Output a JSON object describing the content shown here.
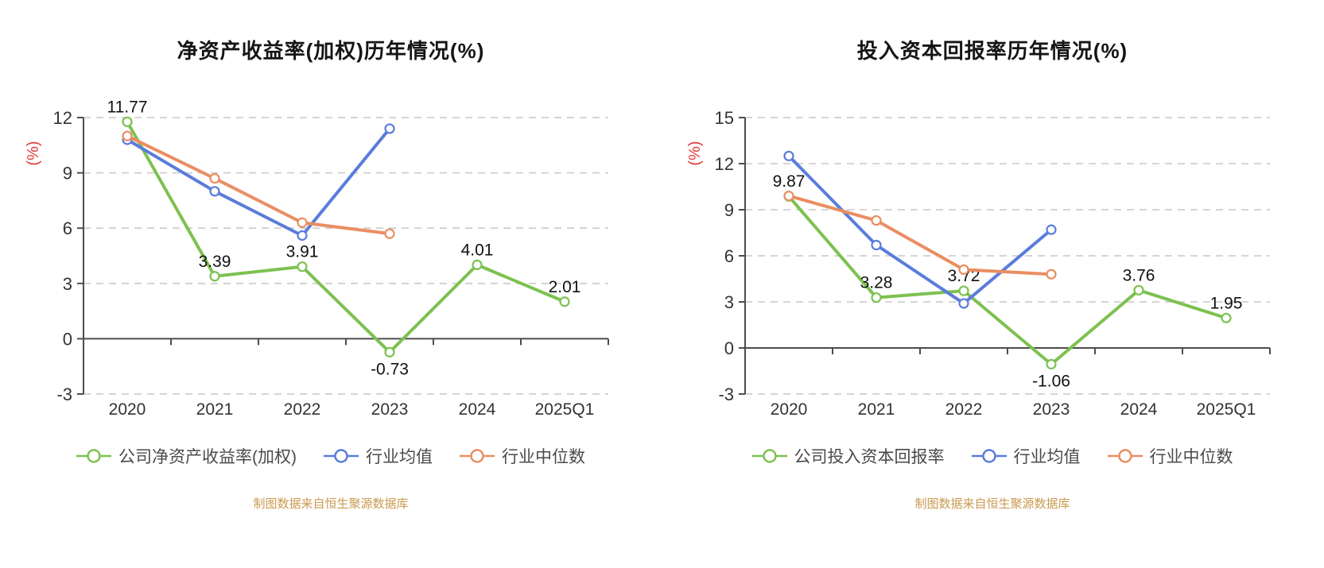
{
  "style_colors": {
    "company_series": "#7dc150",
    "industry_avg_series": "#5b7cdb",
    "industry_median_series": "#ea8e62",
    "unit_label": "#e23b3b",
    "footer_text": "#c99a4f",
    "axis_line": "#4d4d4d",
    "tick_label": "#333333",
    "gridline": "#cfcfcf",
    "data_label": "#111111"
  },
  "chart_data": [
    {
      "type": "line",
      "title": "净资产收益率(加权)历年情况(%)",
      "ylabel": "(%)",
      "categories": [
        "2020",
        "2021",
        "2022",
        "2023",
        "2024",
        "2025Q1"
      ],
      "y_ticks": [
        12,
        9,
        6,
        3,
        0,
        -3
      ],
      "ylim": [
        -3,
        12
      ],
      "grid": "horizontal-dashed",
      "legend_position": "bottom",
      "series": [
        {
          "name": "公司净资产收益率(加权)",
          "color": "#7dc150",
          "show_labels": true,
          "values": [
            11.77,
            3.39,
            3.91,
            -0.73,
            4.01,
            2.01
          ]
        },
        {
          "name": "行业均值",
          "color": "#5b7cdb",
          "show_labels": false,
          "values": [
            10.8,
            8.0,
            5.6,
            11.4,
            null,
            null
          ]
        },
        {
          "name": "行业中位数",
          "color": "#ea8e62",
          "show_labels": false,
          "values": [
            11.0,
            8.7,
            6.3,
            5.7,
            null,
            null
          ]
        }
      ],
      "footer": "制图数据来自恒生聚源数据库"
    },
    {
      "type": "line",
      "title": "投入资本回报率历年情况(%)",
      "ylabel": "(%)",
      "categories": [
        "2020",
        "2021",
        "2022",
        "2023",
        "2024",
        "2025Q1"
      ],
      "y_ticks": [
        15,
        12,
        9,
        6,
        3,
        0,
        -3
      ],
      "ylim": [
        -3,
        15
      ],
      "grid": "horizontal-dashed",
      "legend_position": "bottom",
      "series": [
        {
          "name": "公司投入资本回报率",
          "color": "#7dc150",
          "show_labels": true,
          "values": [
            9.87,
            3.28,
            3.72,
            -1.06,
            3.76,
            1.95
          ]
        },
        {
          "name": "行业均值",
          "color": "#5b7cdb",
          "show_labels": false,
          "values": [
            12.5,
            6.7,
            2.9,
            7.7,
            null,
            null
          ]
        },
        {
          "name": "行业中位数",
          "color": "#ea8e62",
          "show_labels": false,
          "values": [
            9.9,
            8.3,
            5.1,
            4.8,
            null,
            null
          ]
        }
      ],
      "footer": "制图数据来自恒生聚源数据库"
    }
  ]
}
